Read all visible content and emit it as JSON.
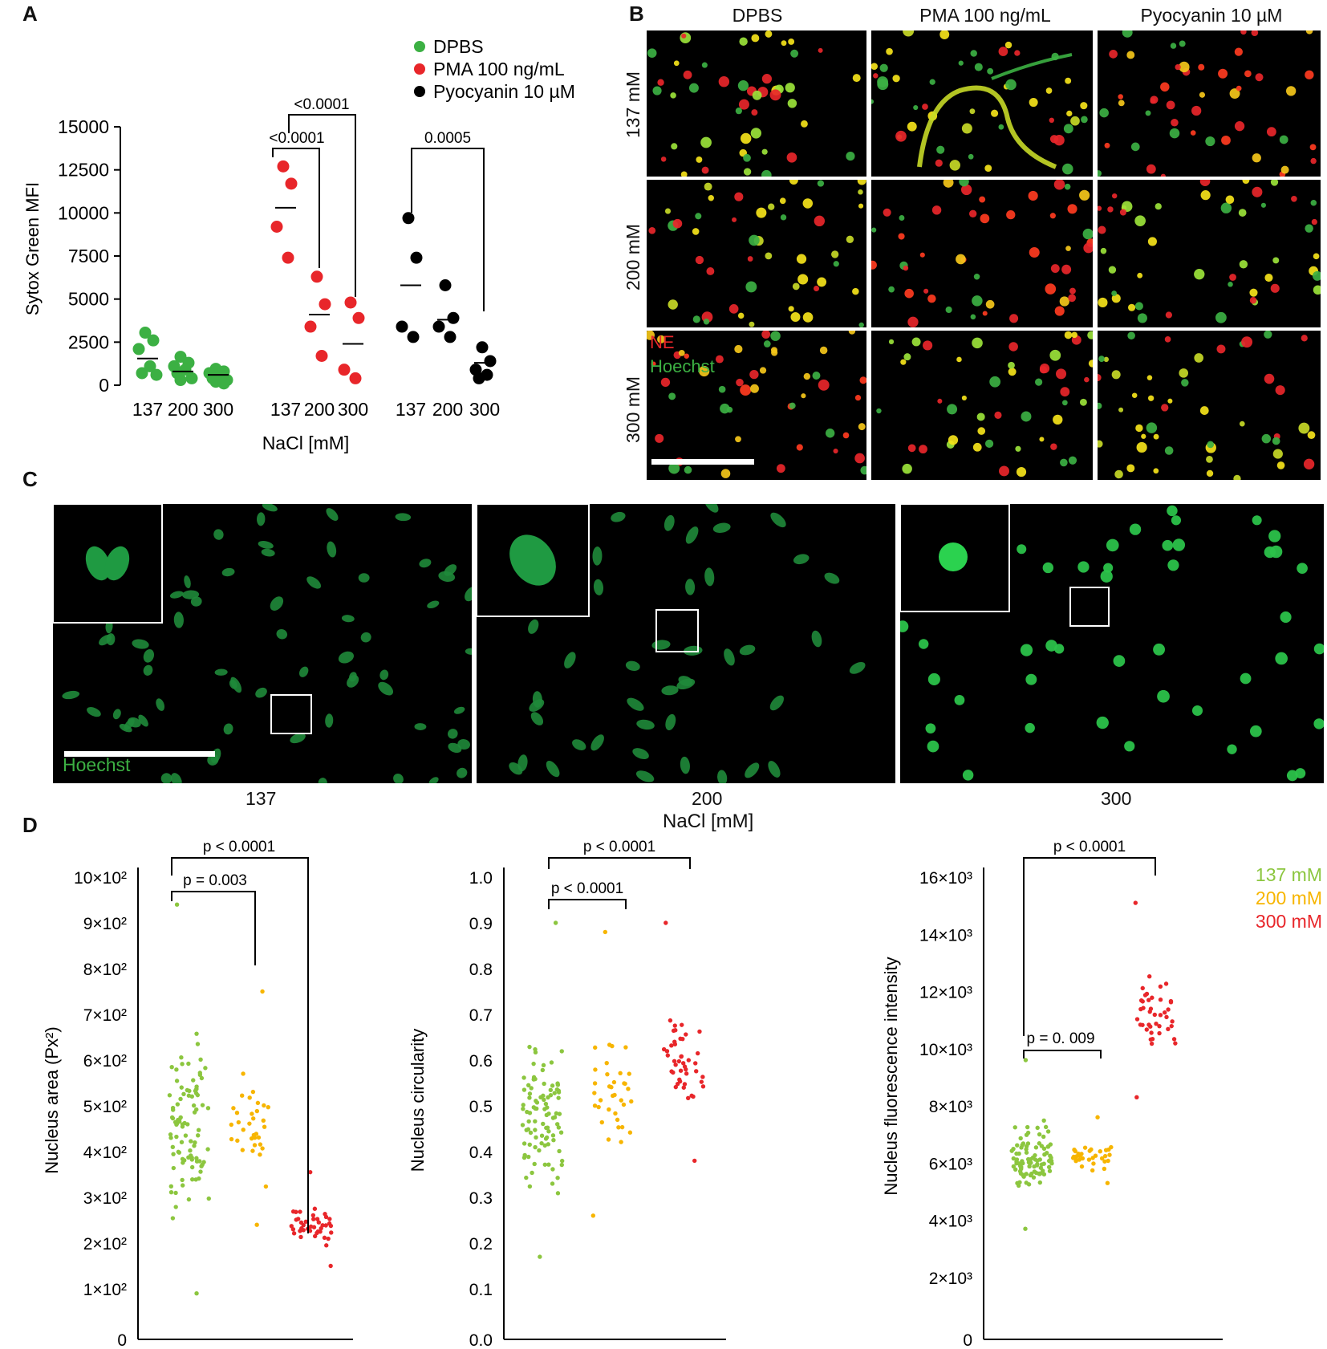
{
  "panels": {
    "a": "A",
    "b": "B",
    "c": "C",
    "d": "D"
  },
  "chart_data": [
    {
      "type": "scatter",
      "panel": "A",
      "title": "",
      "ylabel": "Sytox Green MFI",
      "xlabel": "NaCl [mM]",
      "ylim": [
        0,
        15000
      ],
      "yticks": [
        0,
        2500,
        5000,
        7500,
        10000,
        12500,
        15000
      ],
      "x_groups": [
        "137",
        "200",
        "300",
        "137",
        "200",
        "300",
        "137",
        "200",
        "300"
      ],
      "legend_position": "top-right",
      "series": [
        {
          "name": "DPBS",
          "color": "#3cb043",
          "groups": [
            {
              "nacl": "137",
              "values": [
                3050,
                2600,
                2100,
                1100,
                700,
                600
              ],
              "mean": 1550
            },
            {
              "nacl": "200",
              "values": [
                1650,
                1300,
                1100,
                900,
                700,
                400,
                300
              ],
              "mean": 800
            },
            {
              "nacl": "300",
              "values": [
                950,
                800,
                700,
                500,
                400,
                300,
                200,
                100
              ],
              "mean": 600
            }
          ]
        },
        {
          "name": "PMA 100 ng/mL",
          "color": "#e8262a",
          "groups": [
            {
              "nacl": "137",
              "values": [
                12700,
                11700,
                9200,
                7400
              ],
              "mean": 10300
            },
            {
              "nacl": "200",
              "values": [
                6300,
                4700,
                3400,
                1700
              ],
              "mean": 4100
            },
            {
              "nacl": "300",
              "values": [
                4800,
                3900,
                900,
                400
              ],
              "mean": 2400
            }
          ]
        },
        {
          "name": "Pyocyanin 10 µM",
          "color": "#000000",
          "groups": [
            {
              "nacl": "137",
              "values": [
                9700,
                7400,
                3400,
                2800
              ],
              "mean": 5800
            },
            {
              "nacl": "200",
              "values": [
                5800,
                3900,
                3400,
                2800
              ],
              "mean": 3800
            },
            {
              "nacl": "300",
              "values": [
                2200,
                1400,
                900,
                600,
                400
              ],
              "mean": 1300
            }
          ]
        }
      ],
      "annotations": [
        "<0.0001",
        "<0.0001",
        "0.0005"
      ]
    },
    {
      "type": "scatter",
      "panel": "D-1",
      "ylabel": "Nucleus area (Px²)",
      "ylim": [
        0,
        1000
      ],
      "yticks": [
        "0",
        "1×10²",
        "2×10²",
        "3×10²",
        "4×10²",
        "5×10²",
        "6×10²",
        "7×10²",
        "8×10²",
        "9×10²",
        "10×10²"
      ],
      "groups": [
        "137 mM",
        "200 mM",
        "300 mM"
      ],
      "ranges": [
        [
          90,
          940
        ],
        [
          240,
          750
        ],
        [
          150,
          355
        ]
      ],
      "annotations": [
        "p < 0.0001",
        "p = 0.003"
      ]
    },
    {
      "type": "scatter",
      "panel": "D-2",
      "ylabel": "Nucleus circularity",
      "ylim": [
        0,
        1.0
      ],
      "yticks": [
        "0.0",
        "0.1",
        "0.2",
        "0.3",
        "0.4",
        "0.5",
        "0.6",
        "0.7",
        "0.8",
        "0.9",
        "1.0"
      ],
      "groups": [
        "137 mM",
        "200 mM",
        "300 mM"
      ],
      "ranges": [
        [
          0.17,
          0.9
        ],
        [
          0.26,
          0.88
        ],
        [
          0.38,
          0.9
        ]
      ],
      "annotations": [
        "p < 0.0001",
        "p < 0.0001"
      ]
    },
    {
      "type": "scatter",
      "panel": "D-3",
      "ylabel": "Nucleus fluorescence intensity",
      "ylim": [
        0,
        16000
      ],
      "yticks": [
        "0",
        "2×10³",
        "4×10³",
        "6×10³",
        "8×10³",
        "10×10³",
        "12×10³",
        "14×10³",
        "16×10³"
      ],
      "groups": [
        "137 mM",
        "200 mM",
        "300 mM"
      ],
      "ranges": [
        [
          3700,
          9600
        ],
        [
          5300,
          7600
        ],
        [
          8300,
          15100
        ]
      ],
      "annotations": [
        "p < 0.0001",
        "p = 0. 009"
      ],
      "legend": [
        {
          "label": "137 mM",
          "color": "#8cc63f"
        },
        {
          "label": "200 mM",
          "color": "#f7b500"
        },
        {
          "label": "300 mM",
          "color": "#e8262a"
        }
      ]
    }
  ],
  "panel_b": {
    "columns": [
      "DPBS",
      "PMA 100 ng/mL",
      "Pyocyanin 10 µM"
    ],
    "rows": [
      "137 mM",
      "200 mM",
      "300 mM"
    ],
    "stain_ne": "NE",
    "stain_hoechst": "Hoechst"
  },
  "panel_c": {
    "stain": "Hoechst",
    "labels": [
      "137",
      "200",
      "300"
    ],
    "xlabel": "NaCl [mM]"
  }
}
